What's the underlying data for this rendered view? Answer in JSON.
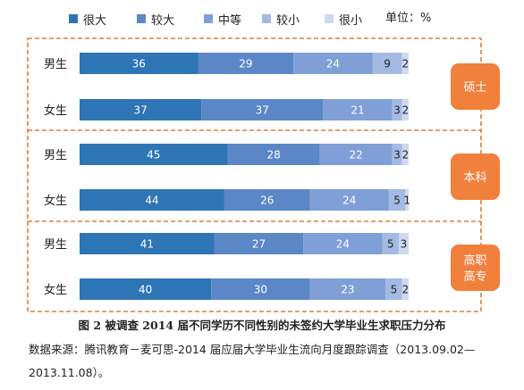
{
  "chart_data": {
    "type": "bar",
    "orientation": "horizontal",
    "stacked": true,
    "unit_label": "单位：%",
    "legend": [
      {
        "name": "很大",
        "color": "#2E75B6"
      },
      {
        "name": "较大",
        "color": "#5B87C7"
      },
      {
        "name": "中等",
        "color": "#7F9FD6"
      },
      {
        "name": "较小",
        "color": "#A4B9E3"
      },
      {
        "name": "很小",
        "color": "#CDD9F0"
      }
    ],
    "groups": [
      {
        "name_lines": [
          "硕士"
        ],
        "rows": [
          {
            "label": "男生",
            "values": [
              36,
              29,
              24,
              9,
              2
            ]
          },
          {
            "label": "女生",
            "values": [
              37,
              37,
              21,
              3,
              2
            ]
          }
        ]
      },
      {
        "name_lines": [
          "本科"
        ],
        "rows": [
          {
            "label": "男生",
            "values": [
              45,
              28,
              22,
              3,
              2
            ]
          },
          {
            "label": "女生",
            "values": [
              44,
              26,
              24,
              5,
              1
            ]
          }
        ]
      },
      {
        "name_lines": [
          "高职",
          "高专"
        ],
        "rows": [
          {
            "label": "男生",
            "values": [
              41,
              27,
              24,
              5,
              3
            ]
          },
          {
            "label": "女生",
            "values": [
              40,
              30,
              23,
              5,
              2
            ]
          }
        ]
      }
    ],
    "xlim": [
      0,
      100
    ],
    "grid": false,
    "legend_position": "top"
  },
  "caption": "图 2  被调查 2014 届不同学历不同性别的未签约大学毕业生求职压力分布",
  "source": "数据来源：腾讯教育－麦可思-2014 届应届大学毕业生流向月度跟踪调查（2013.09.02—2013.11.08）。",
  "colors": {
    "frame": "#D9803E",
    "group_badge": "#F0803C",
    "label_dark": "#FFFFFF"
  }
}
